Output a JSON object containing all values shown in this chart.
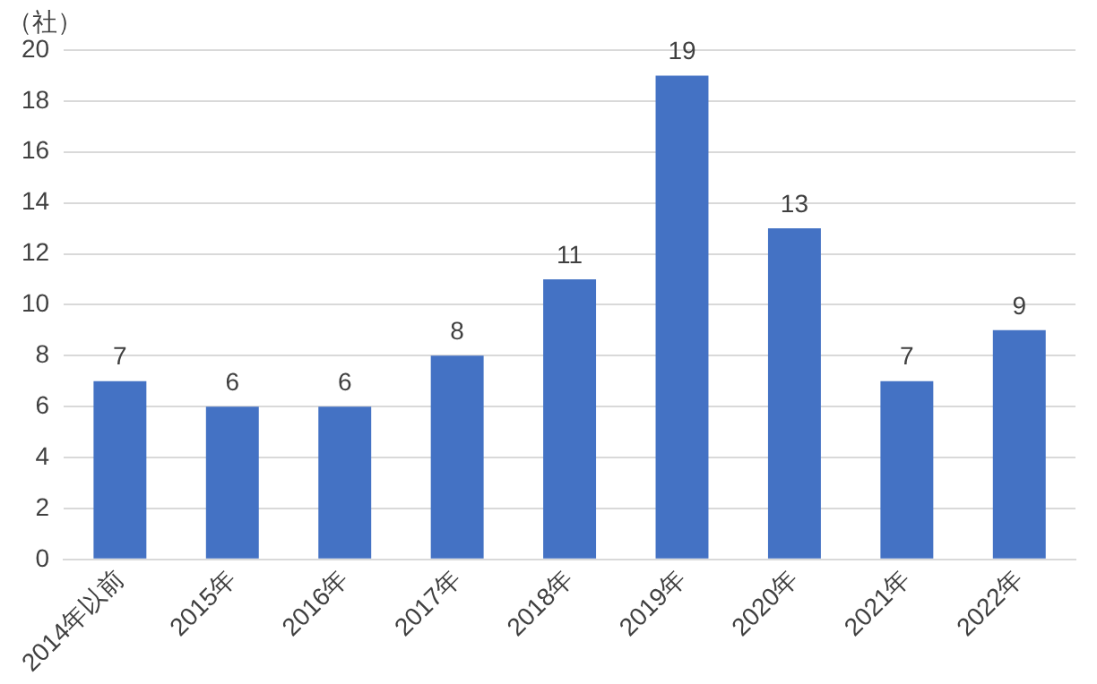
{
  "chart_data": {
    "type": "bar",
    "ylabel": "（社）",
    "categories": [
      "2014年以前",
      "2015年",
      "2016年",
      "2017年",
      "2018年",
      "2019年",
      "2020年",
      "2021年",
      "2022年"
    ],
    "values": [
      7,
      6,
      6,
      8,
      11,
      19,
      13,
      7,
      9
    ],
    "color": "#4472c4",
    "ylim": [
      0,
      20
    ],
    "yticks": [
      0,
      2,
      4,
      6,
      8,
      10,
      12,
      14,
      16,
      18,
      20
    ],
    "grid": "y",
    "data_labels": true,
    "legend": false
  }
}
